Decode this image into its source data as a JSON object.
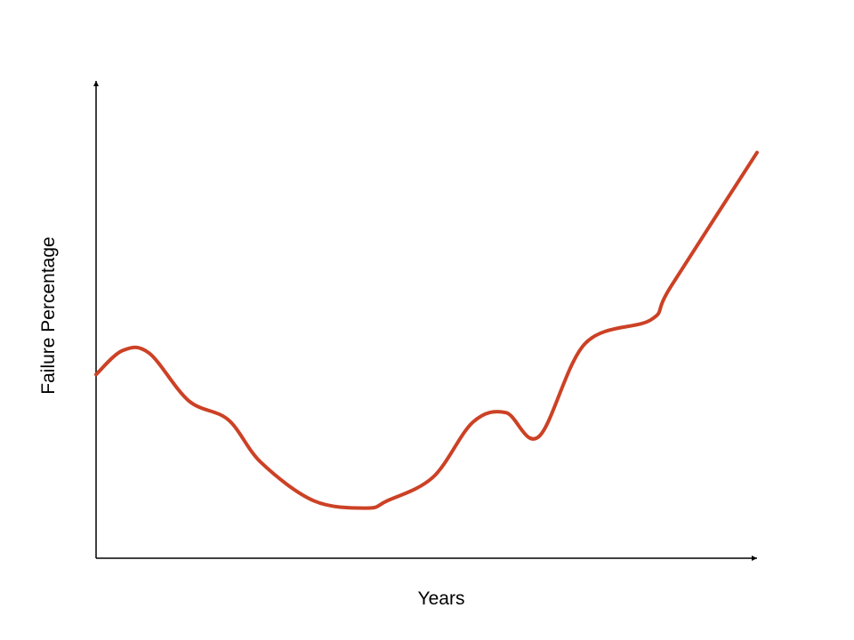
{
  "chart_data": {
    "type": "line",
    "title": "",
    "xlabel": "Years",
    "ylabel": "Failure Percentage",
    "x_ticks": [],
    "y_ticks": [],
    "grid": false,
    "legend": "none",
    "xlim": [
      0,
      100
    ],
    "ylim": [
      0,
      100
    ],
    "series": [
      {
        "color": "#cc4125",
        "x": [
          0,
          4,
          8,
          14,
          20,
          25,
          33,
          41,
          44,
          51,
          57,
          62,
          67,
          74,
          84,
          87,
          100
        ],
        "y": [
          38.5,
          43.5,
          43,
          33,
          29,
          20,
          12,
          10.5,
          12,
          17,
          28.5,
          30.5,
          25.5,
          45,
          50,
          57,
          85
        ]
      }
    ]
  }
}
